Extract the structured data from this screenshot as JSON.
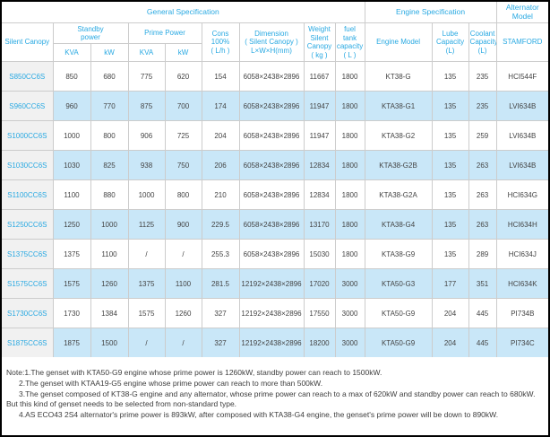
{
  "colors": {
    "header_text": "#29a9e2",
    "model_link_text": "#29a9e2",
    "row_alternate_bg": "#c9e7f8",
    "first_column_bg": "#f1f1f1",
    "grid_border": "#cccccc",
    "outer_border": "#000000",
    "data_text": "#444444"
  },
  "table": {
    "top_header": {
      "general_spec": "General Specification",
      "engine_spec": "Engine Specification",
      "alternator_model": [
        "Alternator",
        "Model"
      ]
    },
    "columns": {
      "silent_canopy": "Silent Canopy",
      "standby_power": [
        "Standby",
        "power"
      ],
      "prime_power": "Prime Power",
      "standby_kva": "KVA",
      "standby_kw": "kW",
      "prime_kva": "KVA",
      "prime_kw": "kW",
      "cons": [
        "Cons",
        "100%",
        "( L/h )"
      ],
      "dimension": [
        "Dimension",
        "( Silent Canopy )",
        "L×W×H(mm)"
      ],
      "weight": [
        "Weight",
        "Silent",
        "Canopy",
        "( kg )"
      ],
      "fuel_tank": [
        "fuel tank",
        "capacity",
        "( L )"
      ],
      "engine_model": "Engine Model",
      "lube_capacity": [
        "Lube",
        "Capacity",
        "(L)"
      ],
      "coolant_capacity": [
        "Coolant",
        "Capacity",
        "(L)"
      ],
      "stamford": "STAMFORD"
    },
    "rows": [
      {
        "model": "S850CC6S",
        "values": [
          "850",
          "680",
          "775",
          "620",
          "154",
          "6058×2438×2896",
          "11667",
          "1800",
          "KT38-G",
          "135",
          "235",
          "HCI544F"
        ]
      },
      {
        "model": "S960CC6S",
        "values": [
          "960",
          "770",
          "875",
          "700",
          "174",
          "6058×2438×2896",
          "11947",
          "1800",
          "KTA38-G1",
          "135",
          "235",
          "LVI634B"
        ]
      },
      {
        "model": "S1000CC6S",
        "values": [
          "1000",
          "800",
          "906",
          "725",
          "204",
          "6058×2438×2896",
          "11947",
          "1800",
          "KTA38-G2",
          "135",
          "259",
          "LVI634B"
        ]
      },
      {
        "model": "S1030CC6S",
        "values": [
          "1030",
          "825",
          "938",
          "750",
          "206",
          "6058×2438×2896",
          "12834",
          "1800",
          "KTA38-G2B",
          "135",
          "263",
          "LVI634B"
        ]
      },
      {
        "model": "S1100CC6S",
        "values": [
          "1100",
          "880",
          "1000",
          "800",
          "210",
          "6058×2438×2896",
          "12834",
          "1800",
          "KTA38-G2A",
          "135",
          "263",
          "HCI634G"
        ]
      },
      {
        "model": "S1250CC6S",
        "values": [
          "1250",
          "1000",
          "1125",
          "900",
          "229.5",
          "6058×2438×2896",
          "13170",
          "1800",
          "KTA38-G4",
          "135",
          "263",
          "HCI634H"
        ]
      },
      {
        "model": "S1375CC6S",
        "values": [
          "1375",
          "1100",
          "/",
          "/",
          "255.3",
          "6058×2438×2896",
          "15030",
          "1800",
          "KTA38-G9",
          "135",
          "289",
          "HCI634J"
        ]
      },
      {
        "model": "S1575CC6S",
        "values": [
          "1575",
          "1260",
          "1375",
          "1100",
          "281.5",
          "12192×2438×2896",
          "17020",
          "3000",
          "KTA50-G3",
          "177",
          "351",
          "HCI634K"
        ]
      },
      {
        "model": "S1730CC6S",
        "values": [
          "1730",
          "1384",
          "1575",
          "1260",
          "327",
          "12192×2438×2896",
          "17550",
          "3000",
          "KTA50-G9",
          "204",
          "445",
          "PI734B"
        ]
      },
      {
        "model": "S1875CC6S",
        "values": [
          "1875",
          "1500",
          "/",
          "/",
          "327",
          "12192×2438×2896",
          "18200",
          "3000",
          "KTA50-G9",
          "204",
          "445",
          "PI734C"
        ]
      }
    ]
  },
  "notes": {
    "lines": [
      "Note:1.The genset with KTA50-G9 engine whose prime power is 1260kW, standby power can reach to 1500kW.",
      "2.The genset with KTAA19-G5 engine whose prime power can reach to more than 500kW.",
      "3.The genset composed of KT38-G engine and any alternator, whose prime power can reach to a max of 620kW and standby power can reach to 680kW.",
      "But this kind of genset needs to be selected from non-standard type.",
      "4.AS ECO43 2S4 alternator's prime power is 893kW, after composed with KTA38-G4 engine, the genset's prime power will be down to 890kW."
    ]
  }
}
